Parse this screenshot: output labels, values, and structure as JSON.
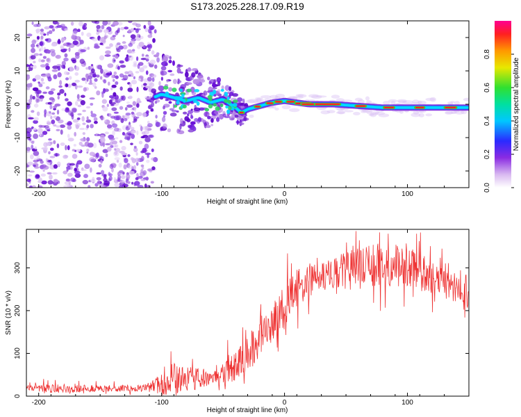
{
  "title": "S173.2025.228.17.09.R19",
  "colors": {
    "snr_line": "#ee3333",
    "axis": "#000000",
    "carrier_low": "#6a0dd8",
    "carrier_mid": "#00d8ff",
    "carrier_high": "#ff2222"
  },
  "chart_data": [
    {
      "type": "heatmap",
      "name": "spectrogram",
      "title": "S173.2025.228.17.09.R19",
      "xlabel": "Height of straight line (km)",
      "ylabel": "Frequency (Hz)",
      "xlim": [
        -210,
        150
      ],
      "ylim": [
        -25,
        25
      ],
      "xticks": [
        -200,
        -100,
        0,
        100
      ],
      "yticks": [
        -20,
        -10,
        0,
        10,
        20
      ],
      "colorbar": {
        "label": "Normalized spectral amplitude",
        "range": [
          0,
          1
        ],
        "ticks": [
          "0.0",
          "0.2",
          "0.4",
          "0.6",
          "0.8"
        ]
      },
      "carrier_track": [
        {
          "x": -110,
          "f": 1.5
        },
        {
          "x": -100,
          "f": 3.0
        },
        {
          "x": -90,
          "f": 2.0
        },
        {
          "x": -80,
          "f": 1.0
        },
        {
          "x": -70,
          "f": 2.0
        },
        {
          "x": -60,
          "f": 0.5
        },
        {
          "x": -50,
          "f": 1.5
        },
        {
          "x": -40,
          "f": -1.0
        },
        {
          "x": -35,
          "f": -2.5
        },
        {
          "x": -30,
          "f": -1.5
        },
        {
          "x": -20,
          "f": -0.5
        },
        {
          "x": -10,
          "f": 0.5
        },
        {
          "x": 0,
          "f": 1.0
        },
        {
          "x": 10,
          "f": 0.5
        },
        {
          "x": 20,
          "f": 0.0
        },
        {
          "x": 40,
          "f": 0.0
        },
        {
          "x": 60,
          "f": -0.5
        },
        {
          "x": 80,
          "f": -1.0
        },
        {
          "x": 100,
          "f": -1.0
        },
        {
          "x": 120,
          "f": -1.0
        },
        {
          "x": 150,
          "f": -1.0
        }
      ],
      "noise_region": {
        "x_from": -210,
        "x_to": -105
      }
    },
    {
      "type": "line",
      "name": "snr",
      "xlabel": "Height of straight line (km)",
      "ylabel": "SNR (10 * v/v)",
      "xlim": [
        -210,
        150
      ],
      "ylim": [
        0,
        390
      ],
      "xticks": [
        -200,
        -100,
        0,
        100
      ],
      "yticks": [
        0,
        100,
        200,
        300
      ],
      "envelope": {
        "x": [
          -210,
          -180,
          -150,
          -120,
          -110,
          -100,
          -90,
          -80,
          -70,
          -60,
          -50,
          -40,
          -30,
          -20,
          -10,
          0,
          10,
          20,
          30,
          40,
          50,
          60,
          70,
          80,
          90,
          100,
          110,
          120,
          130,
          140,
          150
        ],
        "mean": [
          18,
          18,
          18,
          18,
          20,
          30,
          38,
          40,
          42,
          45,
          52,
          70,
          100,
          135,
          170,
          215,
          250,
          270,
          280,
          285,
          292,
          300,
          305,
          308,
          305,
          300,
          290,
          275,
          262,
          248,
          230
        ],
        "spread": [
          8,
          10,
          8,
          8,
          10,
          25,
          40,
          30,
          25,
          20,
          25,
          35,
          45,
          45,
          45,
          50,
          45,
          40,
          35,
          40,
          45,
          50,
          50,
          50,
          50,
          50,
          45,
          40,
          35,
          30,
          25
        ]
      }
    }
  ]
}
